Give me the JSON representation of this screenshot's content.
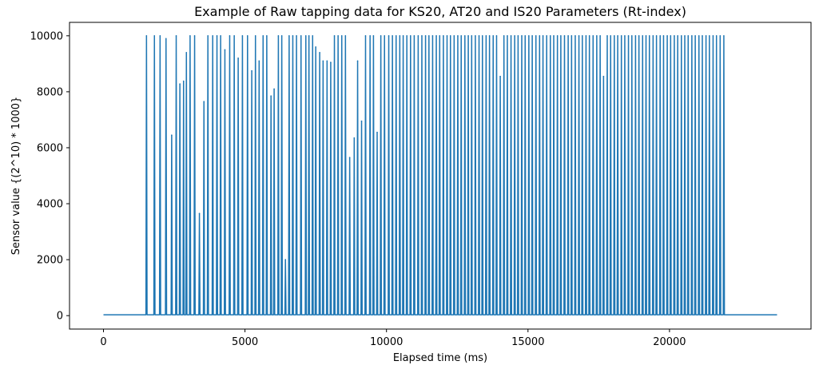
{
  "chart_data": {
    "type": "line",
    "title": "Example of Raw tapping data for KS20, AT20 and IS20 Parameters (Rt-index)",
    "xlabel": "Elapsed time (ms)",
    "ylabel": "Sensor value {(2^10) * 1000}",
    "xlim": [
      -1200,
      25000
    ],
    "ylim": [
      -480,
      10480
    ],
    "xticks": [
      0,
      5000,
      10000,
      15000,
      20000
    ],
    "yticks": [
      0,
      2000,
      4000,
      6000,
      8000,
      10000
    ],
    "xtick_labels": [
      "0",
      "5000",
      "10000",
      "15000",
      "20000"
    ],
    "ytick_labels": [
      "0",
      "2000",
      "4000",
      "6000",
      "8000",
      "10000"
    ],
    "grid": false,
    "baseline": 30,
    "x_start": 0,
    "x_end": 23800,
    "color": "#1f77b4",
    "series": [
      {
        "peak_times": [
          1520,
          1800,
          2000,
          2210,
          2410,
          2570,
          2700,
          2830,
          2930,
          3060,
          3220,
          3390,
          3550,
          3690,
          3860,
          4010,
          4140,
          4290,
          4460,
          4620,
          4760,
          4910,
          5090,
          5240,
          5370,
          5500,
          5640,
          5770,
          5920,
          6030,
          6180,
          6300,
          6430,
          6560,
          6690,
          6820,
          6980,
          7150,
          7260,
          7390,
          7500,
          7640,
          7760,
          7900,
          8030,
          8160,
          8290,
          8420,
          8550,
          8700,
          8860,
          8980,
          9120,
          9260,
          9420,
          9540,
          9670,
          9800,
          9930,
          10080,
          10210,
          10340,
          10470,
          10590,
          10720,
          10850,
          10980,
          11120,
          11250,
          11380,
          11500,
          11630,
          11760,
          11880,
          12010,
          12140,
          12260,
          12390,
          12520,
          12640,
          12770,
          12890,
          13010,
          13140,
          13270,
          13390,
          13520,
          13640,
          13770,
          13890,
          14020,
          14150,
          14270,
          14400,
          14530,
          14650,
          14780,
          14900,
          15030,
          15150,
          15280,
          15410,
          15530,
          15660,
          15790,
          15910,
          16040,
          16160,
          16290,
          16420,
          16540,
          16670,
          16800,
          16920,
          17050,
          17170,
          17300,
          17430,
          17550,
          17670,
          17800,
          17920,
          18050,
          18170,
          18300,
          18420,
          18550,
          18670,
          18800,
          18920,
          19050,
          19170,
          19290,
          19420,
          19540,
          19670,
          19790,
          19920,
          20040,
          20170,
          20290,
          20420,
          20540,
          20660,
          20790,
          20910,
          21040,
          21160,
          21290,
          21410,
          21540,
          21660,
          21790,
          21920
        ],
        "peak_values": [
          10000,
          10000,
          10000,
          9900,
          6450,
          10000,
          8280,
          8380,
          9400,
          10000,
          10000,
          3650,
          7650,
          10000,
          10000,
          10000,
          10000,
          9500,
          10000,
          10000,
          9200,
          10000,
          10000,
          8750,
          10000,
          9100,
          10000,
          10000,
          7850,
          8100,
          10000,
          10000,
          2000,
          10000,
          10000,
          10000,
          10000,
          10000,
          10000,
          10000,
          9600,
          9400,
          9100,
          9100,
          9050,
          10000,
          10000,
          10000,
          10000,
          5650,
          6350,
          9100,
          6950,
          10000,
          10000,
          10000,
          6550,
          10000,
          10000,
          10000,
          10000,
          10000,
          10000,
          10000,
          10000,
          10000,
          10000,
          10000,
          10000,
          10000,
          10000,
          10000,
          10000,
          10000,
          10000,
          10000,
          10000,
          10000,
          10000,
          10000,
          10000,
          10000,
          10000,
          10000,
          10000,
          10000,
          10000,
          10000,
          10000,
          10000,
          8550,
          10000,
          10000,
          10000,
          10000,
          10000,
          10000,
          10000,
          10000,
          10000,
          10000,
          10000,
          10000,
          10000,
          10000,
          10000,
          10000,
          10000,
          10000,
          10000,
          10000,
          10000,
          10000,
          10000,
          10000,
          10000,
          10000,
          10000,
          10000,
          8550,
          10000,
          10000,
          10000,
          10000,
          10000,
          10000,
          10000,
          10000,
          10000,
          10000,
          10000,
          10000,
          10000,
          10000,
          10000,
          10000,
          10000,
          10000,
          10000,
          10000,
          10000,
          10000,
          10000,
          10000,
          10000,
          10000,
          10000,
          10000,
          10000,
          10000,
          10000,
          10000,
          10000,
          10000
        ]
      }
    ]
  }
}
